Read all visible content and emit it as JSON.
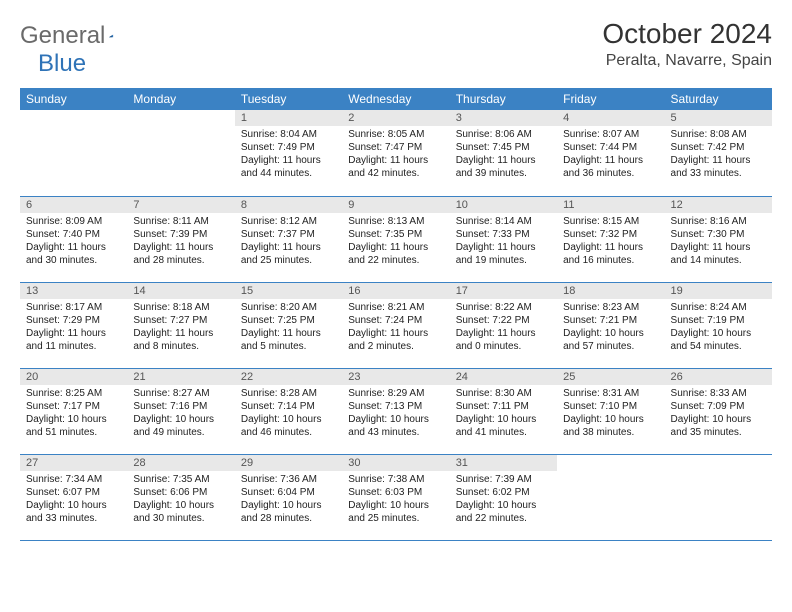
{
  "logo": {
    "text1": "General",
    "text2": "Blue"
  },
  "title": "October 2024",
  "location": "Peralta, Navarre, Spain",
  "weekdays": [
    "Sunday",
    "Monday",
    "Tuesday",
    "Wednesday",
    "Thursday",
    "Friday",
    "Saturday"
  ],
  "colors": {
    "header_bg": "#3b82c4",
    "header_text": "#ffffff",
    "daynum_bg": "#e8e8e8",
    "border": "#3b82c4",
    "logo_gray": "#6a6a6a",
    "logo_blue": "#2f73b7"
  },
  "weeks": [
    [
      null,
      null,
      {
        "n": "1",
        "sr": "8:04 AM",
        "ss": "7:49 PM",
        "dl": "11 hours and 44 minutes."
      },
      {
        "n": "2",
        "sr": "8:05 AM",
        "ss": "7:47 PM",
        "dl": "11 hours and 42 minutes."
      },
      {
        "n": "3",
        "sr": "8:06 AM",
        "ss": "7:45 PM",
        "dl": "11 hours and 39 minutes."
      },
      {
        "n": "4",
        "sr": "8:07 AM",
        "ss": "7:44 PM",
        "dl": "11 hours and 36 minutes."
      },
      {
        "n": "5",
        "sr": "8:08 AM",
        "ss": "7:42 PM",
        "dl": "11 hours and 33 minutes."
      }
    ],
    [
      {
        "n": "6",
        "sr": "8:09 AM",
        "ss": "7:40 PM",
        "dl": "11 hours and 30 minutes."
      },
      {
        "n": "7",
        "sr": "8:11 AM",
        "ss": "7:39 PM",
        "dl": "11 hours and 28 minutes."
      },
      {
        "n": "8",
        "sr": "8:12 AM",
        "ss": "7:37 PM",
        "dl": "11 hours and 25 minutes."
      },
      {
        "n": "9",
        "sr": "8:13 AM",
        "ss": "7:35 PM",
        "dl": "11 hours and 22 minutes."
      },
      {
        "n": "10",
        "sr": "8:14 AM",
        "ss": "7:33 PM",
        "dl": "11 hours and 19 minutes."
      },
      {
        "n": "11",
        "sr": "8:15 AM",
        "ss": "7:32 PM",
        "dl": "11 hours and 16 minutes."
      },
      {
        "n": "12",
        "sr": "8:16 AM",
        "ss": "7:30 PM",
        "dl": "11 hours and 14 minutes."
      }
    ],
    [
      {
        "n": "13",
        "sr": "8:17 AM",
        "ss": "7:29 PM",
        "dl": "11 hours and 11 minutes."
      },
      {
        "n": "14",
        "sr": "8:18 AM",
        "ss": "7:27 PM",
        "dl": "11 hours and 8 minutes."
      },
      {
        "n": "15",
        "sr": "8:20 AM",
        "ss": "7:25 PM",
        "dl": "11 hours and 5 minutes."
      },
      {
        "n": "16",
        "sr": "8:21 AM",
        "ss": "7:24 PM",
        "dl": "11 hours and 2 minutes."
      },
      {
        "n": "17",
        "sr": "8:22 AM",
        "ss": "7:22 PM",
        "dl": "11 hours and 0 minutes."
      },
      {
        "n": "18",
        "sr": "8:23 AM",
        "ss": "7:21 PM",
        "dl": "10 hours and 57 minutes."
      },
      {
        "n": "19",
        "sr": "8:24 AM",
        "ss": "7:19 PM",
        "dl": "10 hours and 54 minutes."
      }
    ],
    [
      {
        "n": "20",
        "sr": "8:25 AM",
        "ss": "7:17 PM",
        "dl": "10 hours and 51 minutes."
      },
      {
        "n": "21",
        "sr": "8:27 AM",
        "ss": "7:16 PM",
        "dl": "10 hours and 49 minutes."
      },
      {
        "n": "22",
        "sr": "8:28 AM",
        "ss": "7:14 PM",
        "dl": "10 hours and 46 minutes."
      },
      {
        "n": "23",
        "sr": "8:29 AM",
        "ss": "7:13 PM",
        "dl": "10 hours and 43 minutes."
      },
      {
        "n": "24",
        "sr": "8:30 AM",
        "ss": "7:11 PM",
        "dl": "10 hours and 41 minutes."
      },
      {
        "n": "25",
        "sr": "8:31 AM",
        "ss": "7:10 PM",
        "dl": "10 hours and 38 minutes."
      },
      {
        "n": "26",
        "sr": "8:33 AM",
        "ss": "7:09 PM",
        "dl": "10 hours and 35 minutes."
      }
    ],
    [
      {
        "n": "27",
        "sr": "7:34 AM",
        "ss": "6:07 PM",
        "dl": "10 hours and 33 minutes."
      },
      {
        "n": "28",
        "sr": "7:35 AM",
        "ss": "6:06 PM",
        "dl": "10 hours and 30 minutes."
      },
      {
        "n": "29",
        "sr": "7:36 AM",
        "ss": "6:04 PM",
        "dl": "10 hours and 28 minutes."
      },
      {
        "n": "30",
        "sr": "7:38 AM",
        "ss": "6:03 PM",
        "dl": "10 hours and 25 minutes."
      },
      {
        "n": "31",
        "sr": "7:39 AM",
        "ss": "6:02 PM",
        "dl": "10 hours and 22 minutes."
      },
      null,
      null
    ]
  ],
  "labels": {
    "sunrise": "Sunrise:",
    "sunset": "Sunset:",
    "daylight": "Daylight:"
  }
}
